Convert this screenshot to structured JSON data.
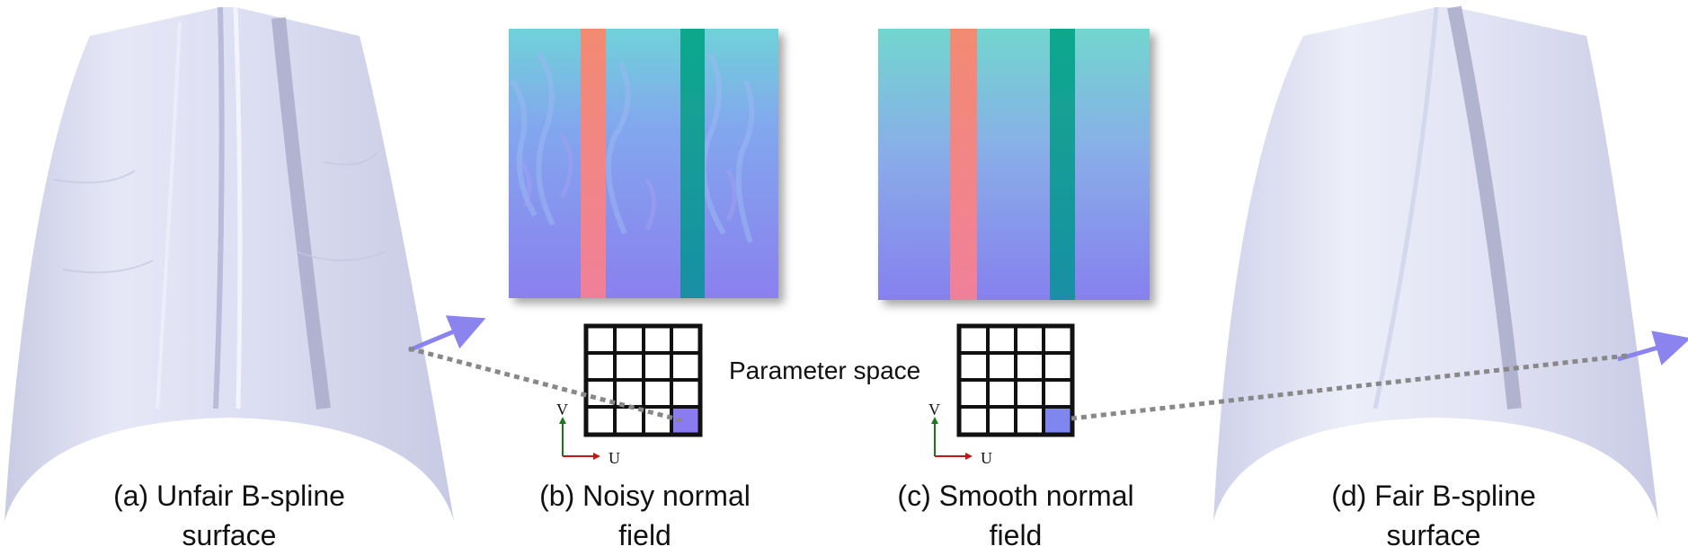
{
  "panels": {
    "a": {
      "line1": "(a) Unfair B-spline",
      "line2": "surface"
    },
    "b": {
      "line1": "(b) Noisy normal",
      "line2": "field"
    },
    "c": {
      "line1": "(c) Smooth normal",
      "line2": "field"
    },
    "d": {
      "line1": "(d) Fair B-spline",
      "line2": "surface"
    }
  },
  "parameter_space_label": "Parameter space",
  "axis": {
    "u": "U",
    "v": "V"
  },
  "colors": {
    "surface": "#d9dbf0",
    "surface_shadow": "#a9accb",
    "normal_blue": "#7f86f0",
    "normal_cyan": "#6fd7cf",
    "normal_red": "#f08a7e",
    "normal_teal": "#0f9e8e",
    "grid_highlight": "#8a7bf0",
    "dotted_line": "#888888",
    "arrow": "#8b84ee"
  },
  "grid": {
    "rows": 4,
    "cols": 4
  }
}
